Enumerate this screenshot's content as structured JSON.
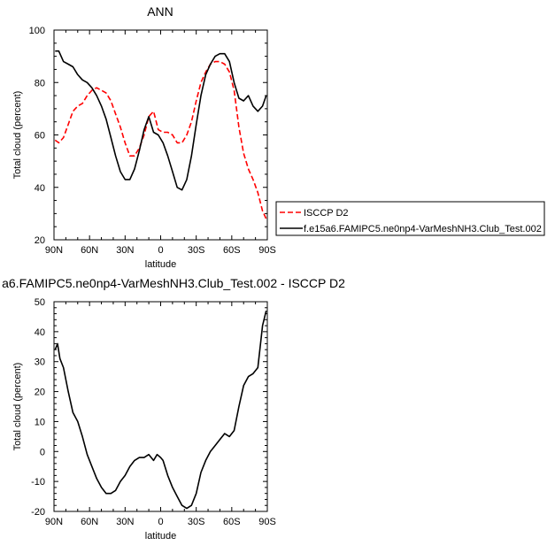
{
  "chart_data": [
    {
      "type": "line",
      "title": "ANN",
      "xlabel": "latitude",
      "ylabel": "Total cloud (percent)",
      "xlim": [
        90,
        -90
      ],
      "ylim": [
        20,
        100
      ],
      "xticks": [
        90,
        60,
        30,
        0,
        -30,
        -60,
        -90
      ],
      "xtick_labels": [
        "90N",
        "60N",
        "30N",
        "0",
        "30S",
        "60S",
        "90S"
      ],
      "yticks": [
        20,
        40,
        60,
        80,
        100
      ],
      "ytick_labels": [
        "20",
        "40",
        "60",
        "80",
        "100"
      ],
      "legend_position": "right, outside plot",
      "series": [
        {
          "name": "ISCCP D2",
          "color": "#ff0000",
          "dash": "dashed",
          "x": [
            89,
            86,
            82,
            78,
            74,
            70,
            66,
            62,
            58,
            54,
            50,
            46,
            42,
            38,
            34,
            30,
            26,
            22,
            18,
            14,
            10,
            6,
            2,
            -2,
            -6,
            -10,
            -14,
            -18,
            -22,
            -26,
            -30,
            -34,
            -38,
            -42,
            -46,
            -50,
            -54,
            -58,
            -62,
            -66,
            -70,
            -74,
            -78,
            -82,
            -86,
            -89
          ],
          "y": [
            58,
            57,
            59,
            64,
            69,
            71,
            72,
            75,
            77,
            78,
            77,
            76,
            73,
            68,
            63,
            57,
            52,
            52,
            55,
            60,
            67,
            69,
            62,
            61,
            61,
            60,
            57,
            57,
            60,
            65,
            73,
            80,
            84,
            87,
            88,
            88,
            87,
            84,
            77,
            63,
            53,
            47,
            43,
            38,
            31,
            28
          ]
        },
        {
          "name": "f.e15a6.FAMIPC5.ne0np4-VarMeshNH3.Club_Test.002",
          "color": "#000000",
          "dash": "solid",
          "x": [
            89,
            86,
            82,
            78,
            74,
            70,
            66,
            62,
            58,
            54,
            50,
            46,
            42,
            38,
            34,
            30,
            26,
            22,
            18,
            14,
            10,
            6,
            2,
            -2,
            -6,
            -10,
            -14,
            -18,
            -22,
            -26,
            -30,
            -34,
            -38,
            -42,
            -46,
            -50,
            -54,
            -58,
            -62,
            -66,
            -70,
            -74,
            -78,
            -82,
            -86,
            -89
          ],
          "y": [
            92,
            92,
            88,
            87,
            86,
            83,
            81,
            80,
            78,
            75,
            71,
            66,
            59,
            52,
            46,
            43,
            43,
            47,
            54,
            62,
            67,
            61,
            60,
            57,
            52,
            46,
            40,
            39,
            43,
            52,
            64,
            75,
            83,
            87,
            90,
            91,
            91,
            88,
            80,
            74,
            73,
            75,
            71,
            69,
            71,
            75
          ]
        }
      ]
    },
    {
      "type": "line",
      "title": "a6.FAMIPC5.ne0np4-VarMeshNH3.Club_Test.002 - ISCCP D2",
      "xlabel": "latitude",
      "ylabel": "Total cloud (percent)",
      "xlim": [
        90,
        -90
      ],
      "ylim": [
        -20,
        50
      ],
      "xticks": [
        90,
        60,
        30,
        0,
        -30,
        -60,
        -90
      ],
      "xtick_labels": [
        "90N",
        "60N",
        "30N",
        "0",
        "30S",
        "60S",
        "90S"
      ],
      "yticks": [
        -20,
        -10,
        0,
        10,
        20,
        30,
        40,
        50
      ],
      "ytick_labels": [
        "-20",
        "-10",
        "0",
        "10",
        "20",
        "30",
        "40",
        "50"
      ],
      "series": [
        {
          "color": "#000000",
          "dash": "solid",
          "x": [
            89,
            87,
            85,
            82,
            78,
            74,
            70,
            66,
            62,
            58,
            54,
            50,
            46,
            42,
            38,
            34,
            30,
            26,
            22,
            18,
            14,
            10,
            6,
            3,
            0,
            -2,
            -6,
            -10,
            -14,
            -18,
            -22,
            -26,
            -30,
            -34,
            -38,
            -42,
            -46,
            -50,
            -54,
            -58,
            -62,
            -66,
            -70,
            -74,
            -78,
            -82,
            -86,
            -89
          ],
          "y": [
            34,
            36,
            31,
            28,
            20,
            13,
            10,
            5,
            -1,
            -5,
            -9,
            -12,
            -14,
            -14,
            -13,
            -10,
            -8,
            -5,
            -3,
            -2,
            -2,
            -1,
            -3,
            -1,
            -2,
            -3,
            -8,
            -12,
            -15,
            -18,
            -19,
            -18,
            -14,
            -7,
            -3,
            0,
            2,
            4,
            6,
            5,
            7,
            15,
            22,
            25,
            26,
            28,
            42,
            47
          ]
        }
      ]
    }
  ]
}
